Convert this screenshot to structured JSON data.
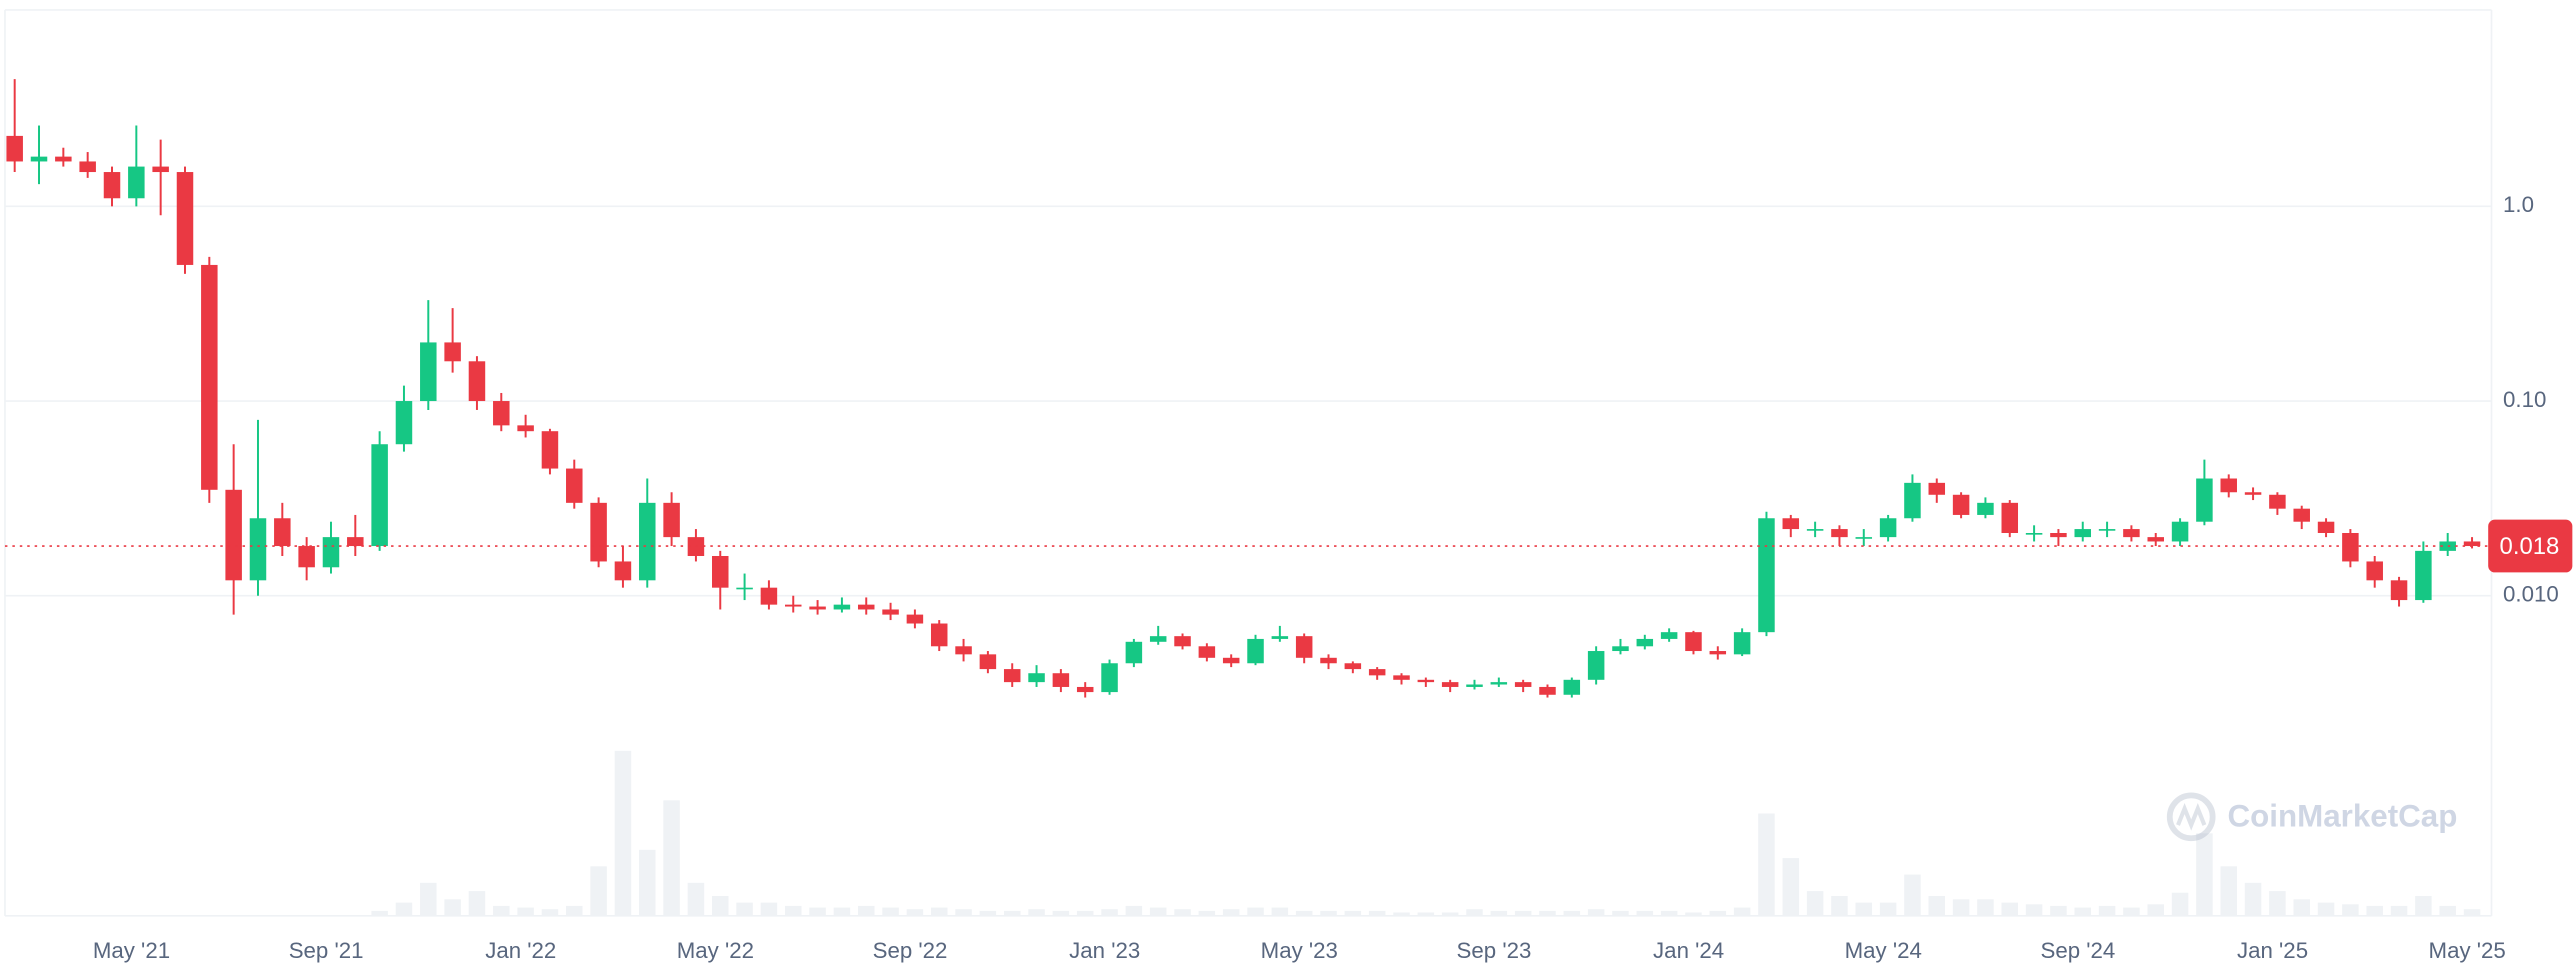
{
  "chart_data": {
    "type": "candlestick",
    "y_scale": "log",
    "grid": true,
    "up_color": "#16c784",
    "down_color": "#ea3943",
    "volume_color": "#eff2f5",
    "watermark": "CoinMarketCap",
    "current_price": 0.018,
    "ylim": [
      0.000227,
      10
    ],
    "yticks": [
      {
        "value": 1,
        "label": "1.0"
      },
      {
        "value": 0.1,
        "label": "0.10"
      },
      {
        "value": 0.01,
        "label": "0.010"
      }
    ],
    "xlim": [
      1.4,
      52.5
    ],
    "xticks": [
      {
        "value": 4,
        "label": "May '21"
      },
      {
        "value": 8,
        "label": "Sep '21"
      },
      {
        "value": 12,
        "label": "Jan '22"
      },
      {
        "value": 16,
        "label": "May '22"
      },
      {
        "value": 20,
        "label": "Sep '22"
      },
      {
        "value": 24,
        "label": "Jan '23"
      },
      {
        "value": 28,
        "label": "May '23"
      },
      {
        "value": 32,
        "label": "Sep '23"
      },
      {
        "value": 36,
        "label": "Jan '24"
      },
      {
        "value": 40,
        "label": "May '24"
      },
      {
        "value": 44,
        "label": "Sep '24"
      },
      {
        "value": 48,
        "label": "Jan '25"
      },
      {
        "value": 52,
        "label": "May '25"
      }
    ],
    "x": [
      1.6,
      2.1,
      2.6,
      3.1,
      3.6,
      4.1,
      4.6,
      5.1,
      5.6,
      6.1,
      6.6,
      7.1,
      7.6,
      8.1,
      8.6,
      9.1,
      9.6,
      10.1,
      10.6,
      11.1,
      11.6,
      12.1,
      12.6,
      13.1,
      13.6,
      14.1,
      14.6,
      15.1,
      15.6,
      16.1,
      16.6,
      17.1,
      17.6,
      18.1,
      18.6,
      19.1,
      19.6,
      20.1,
      20.6,
      21.1,
      21.6,
      22.1,
      22.6,
      23.1,
      23.6,
      24.1,
      24.6,
      25.1,
      25.6,
      26.1,
      26.6,
      27.1,
      27.6,
      28.1,
      28.6,
      29.1,
      29.6,
      30.1,
      30.6,
      31.1,
      31.6,
      32.1,
      32.6,
      33.1,
      33.6,
      34.1,
      34.6,
      35.1,
      35.6,
      36.1,
      36.6,
      37.1,
      37.6,
      38.1,
      38.6,
      39.1,
      39.6,
      40.1,
      40.6,
      41.1,
      41.6,
      42.1,
      42.6,
      43.1,
      43.6,
      44.1,
      44.6,
      45.1,
      45.6,
      46.1,
      46.6,
      47.1,
      47.6,
      48.1,
      48.6,
      49.1,
      49.6,
      50.1,
      50.6,
      51.1,
      51.6,
      52.1
    ],
    "open": [
      2.3,
      1.7,
      1.8,
      1.7,
      1.5,
      1.1,
      1.6,
      1.5,
      0.5,
      0.035,
      0.012,
      0.025,
      0.018,
      0.014,
      0.02,
      0.018,
      0.06,
      0.1,
      0.2,
      0.16,
      0.1,
      0.075,
      0.07,
      0.045,
      0.03,
      0.015,
      0.012,
      0.03,
      0.02,
      0.016,
      0.011,
      0.011,
      0.009,
      0.0088,
      0.0085,
      0.009,
      0.0085,
      0.008,
      0.0072,
      0.0055,
      0.005,
      0.0042,
      0.0036,
      0.004,
      0.0034,
      0.0032,
      0.0045,
      0.0058,
      0.0062,
      0.0055,
      0.0048,
      0.0045,
      0.006,
      0.0062,
      0.0048,
      0.0045,
      0.0042,
      0.0039,
      0.0037,
      0.0036,
      0.0034,
      0.0035,
      0.0036,
      0.0034,
      0.0031,
      0.0037,
      0.0052,
      0.0055,
      0.006,
      0.0065,
      0.0052,
      0.005,
      0.0065,
      0.025,
      0.022,
      0.022,
      0.02,
      0.02,
      0.025,
      0.038,
      0.033,
      0.026,
      0.03,
      0.021,
      0.021,
      0.02,
      0.022,
      0.022,
      0.02,
      0.019,
      0.024,
      0.04,
      0.034,
      0.033,
      0.028,
      0.024,
      0.021,
      0.015,
      0.012,
      0.0095,
      0.017,
      0.019
    ],
    "high": [
      4.5,
      2.6,
      2.0,
      1.9,
      1.6,
      2.6,
      2.2,
      1.6,
      0.55,
      0.06,
      0.08,
      0.03,
      0.02,
      0.024,
      0.026,
      0.07,
      0.12,
      0.33,
      0.3,
      0.17,
      0.11,
      0.085,
      0.072,
      0.05,
      0.032,
      0.018,
      0.04,
      0.034,
      0.022,
      0.017,
      0.013,
      0.012,
      0.01,
      0.0095,
      0.0098,
      0.0098,
      0.0092,
      0.0085,
      0.0075,
      0.006,
      0.0052,
      0.0045,
      0.0044,
      0.0042,
      0.0036,
      0.0047,
      0.006,
      0.007,
      0.0064,
      0.0057,
      0.005,
      0.0063,
      0.007,
      0.0064,
      0.005,
      0.0046,
      0.0043,
      0.004,
      0.0038,
      0.0037,
      0.0037,
      0.0038,
      0.0037,
      0.0035,
      0.0038,
      0.0055,
      0.006,
      0.0063,
      0.0068,
      0.0066,
      0.0055,
      0.0068,
      0.027,
      0.026,
      0.024,
      0.023,
      0.022,
      0.026,
      0.042,
      0.04,
      0.034,
      0.032,
      0.031,
      0.023,
      0.022,
      0.024,
      0.024,
      0.023,
      0.021,
      0.025,
      0.05,
      0.042,
      0.036,
      0.034,
      0.029,
      0.025,
      0.022,
      0.016,
      0.0125,
      0.019,
      0.021,
      0.02
    ],
    "low": [
      1.5,
      1.3,
      1.6,
      1.4,
      1.0,
      1.0,
      0.9,
      0.45,
      0.03,
      0.008,
      0.01,
      0.016,
      0.012,
      0.013,
      0.016,
      0.017,
      0.055,
      0.09,
      0.14,
      0.09,
      0.07,
      0.065,
      0.042,
      0.028,
      0.014,
      0.011,
      0.011,
      0.018,
      0.015,
      0.0085,
      0.0095,
      0.0085,
      0.0082,
      0.008,
      0.0082,
      0.008,
      0.0075,
      0.0068,
      0.0052,
      0.0046,
      0.004,
      0.0034,
      0.0034,
      0.0032,
      0.003,
      0.0031,
      0.0043,
      0.0056,
      0.0053,
      0.0046,
      0.0043,
      0.0044,
      0.0058,
      0.0045,
      0.0042,
      0.004,
      0.0037,
      0.0035,
      0.0034,
      0.0032,
      0.0033,
      0.0034,
      0.0032,
      0.003,
      0.003,
      0.0035,
      0.005,
      0.0053,
      0.0058,
      0.005,
      0.0047,
      0.0049,
      0.0062,
      0.02,
      0.02,
      0.018,
      0.018,
      0.019,
      0.024,
      0.03,
      0.025,
      0.025,
      0.02,
      0.019,
      0.018,
      0.019,
      0.02,
      0.019,
      0.018,
      0.018,
      0.023,
      0.032,
      0.031,
      0.026,
      0.022,
      0.02,
      0.014,
      0.011,
      0.0088,
      0.0092,
      0.016,
      0.0175
    ],
    "close": [
      1.7,
      1.8,
      1.7,
      1.5,
      1.1,
      1.6,
      1.5,
      0.5,
      0.035,
      0.012,
      0.025,
      0.018,
      0.014,
      0.02,
      0.018,
      0.06,
      0.1,
      0.2,
      0.16,
      0.1,
      0.075,
      0.07,
      0.045,
      0.03,
      0.015,
      0.012,
      0.03,
      0.02,
      0.016,
      0.011,
      0.011,
      0.009,
      0.0088,
      0.0085,
      0.009,
      0.0085,
      0.008,
      0.0072,
      0.0055,
      0.005,
      0.0042,
      0.0036,
      0.004,
      0.0034,
      0.0032,
      0.0045,
      0.0058,
      0.0062,
      0.0055,
      0.0048,
      0.0045,
      0.006,
      0.0062,
      0.0048,
      0.0045,
      0.0042,
      0.0039,
      0.0037,
      0.0036,
      0.0034,
      0.0035,
      0.0036,
      0.0034,
      0.0031,
      0.0037,
      0.0052,
      0.0055,
      0.006,
      0.0065,
      0.0052,
      0.005,
      0.0065,
      0.025,
      0.022,
      0.022,
      0.02,
      0.02,
      0.025,
      0.038,
      0.033,
      0.026,
      0.03,
      0.021,
      0.021,
      0.02,
      0.022,
      0.022,
      0.02,
      0.019,
      0.024,
      0.04,
      0.034,
      0.033,
      0.028,
      0.024,
      0.021,
      0.015,
      0.012,
      0.0095,
      0.017,
      0.019,
      0.018
    ],
    "volume": [
      0,
      0,
      0,
      0,
      0,
      0,
      0,
      0,
      0,
      0,
      0,
      0,
      0,
      0,
      0,
      3,
      8,
      20,
      10,
      15,
      6,
      5,
      4,
      6,
      30,
      100,
      40,
      70,
      20,
      12,
      8,
      8,
      6,
      5,
      5,
      6,
      5,
      4,
      5,
      4,
      3,
      3,
      4,
      3,
      3,
      4,
      6,
      5,
      4,
      3,
      4,
      5,
      5,
      3,
      3,
      3,
      3,
      2,
      2,
      2,
      4,
      3,
      3,
      3,
      3,
      4,
      3,
      3,
      3,
      2,
      3,
      5,
      62,
      35,
      15,
      12,
      8,
      8,
      25,
      12,
      10,
      10,
      8,
      7,
      6,
      5,
      6,
      5,
      7,
      14,
      50,
      30,
      20,
      15,
      10,
      8,
      7,
      6,
      6,
      12,
      6,
      4
    ]
  }
}
